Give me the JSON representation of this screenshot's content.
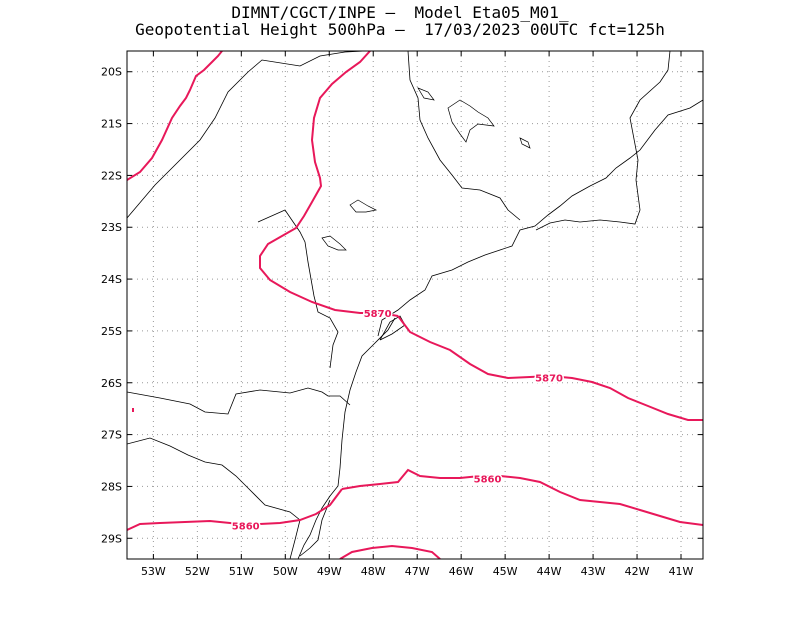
{
  "title": {
    "line1": "DIMNT/CGCT/INPE –  Model Eta05_M01_",
    "line2": "Geopotential Height 500hPa –  17/03/2023 00UTC fct=125h"
  },
  "colors": {
    "contour": "#e8185a",
    "coastline": "#000000",
    "grid": "#999999",
    "frame": "#000000"
  },
  "map": {
    "lon_range": [
      -53.6,
      -40.5
    ],
    "lat_range": [
      -29.4,
      -19.6
    ],
    "lat_ticks": [
      "20S",
      "21S",
      "22S",
      "23S",
      "24S",
      "25S",
      "26S",
      "27S",
      "28S",
      "29S"
    ],
    "lon_ticks": [
      "53W",
      "52W",
      "51W",
      "50W",
      "49W",
      "48W",
      "47W",
      "46W",
      "45W",
      "44W",
      "43W",
      "42W",
      "41W"
    ],
    "grid": "dotted",
    "contour_labels": [
      {
        "text": "5870",
        "lon": -47.9,
        "lat": -24.65
      },
      {
        "text": "5870",
        "lon": -44.0,
        "lat": -25.9
      },
      {
        "text": "5860",
        "lon": -45.4,
        "lat": -27.85
      },
      {
        "text": "5860",
        "lon": -50.9,
        "lat": -28.75
      }
    ]
  }
}
